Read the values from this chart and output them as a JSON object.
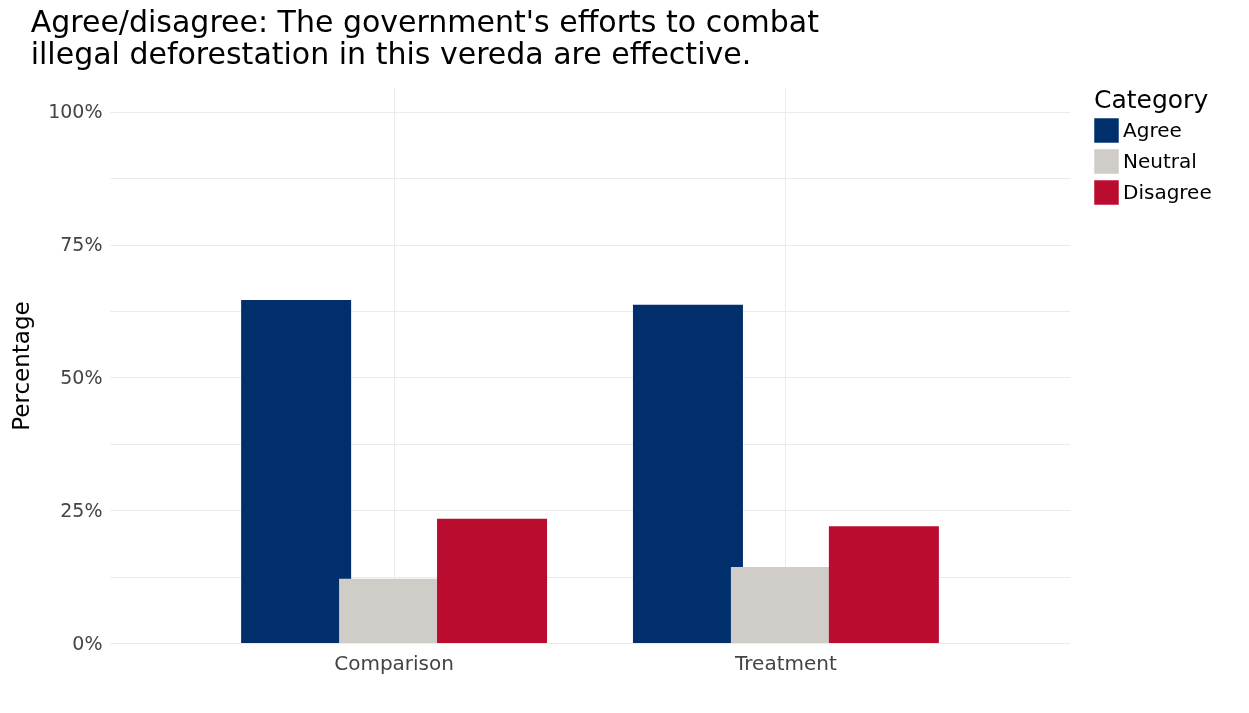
{
  "chart_data": {
    "type": "bar",
    "title": "Agree/disagree: The government's efforts to combat illegal deforestation in this vereda are effective.",
    "ylabel": "Percentage",
    "legend_title": "Category",
    "categories": [
      "Comparison",
      "Treatment"
    ],
    "series": [
      {
        "name": "Agree",
        "color": "#002f6c",
        "values": [
          64.6,
          63.7
        ]
      },
      {
        "name": "Neutral",
        "color": "#d0cdc9",
        "values": [
          12.1,
          14.3
        ]
      },
      {
        "name": "Disagree",
        "color": "#ba0c2f",
        "values": [
          23.4,
          22.0
        ]
      }
    ],
    "ylim": [
      0,
      104.5
    ],
    "yticks": [
      {
        "value": 0,
        "label": "0%"
      },
      {
        "value": 12.5,
        "label": null
      },
      {
        "value": 25,
        "label": "25%"
      },
      {
        "value": 37.5,
        "label": null
      },
      {
        "value": 50,
        "label": "50%"
      },
      {
        "value": 62.5,
        "label": null
      },
      {
        "value": 75,
        "label": "75%"
      },
      {
        "value": 87.5,
        "label": null
      },
      {
        "value": 100,
        "label": "100%"
      }
    ],
    "grid": true,
    "legend": "right"
  }
}
